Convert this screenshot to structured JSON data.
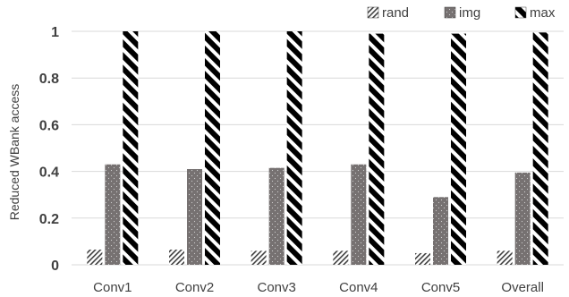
{
  "chart_data": {
    "type": "bar",
    "ylabel": "Reduced WBank access",
    "xlabel": "",
    "categories": [
      "Conv1",
      "Conv2",
      "Conv3",
      "Conv4",
      "Conv5",
      "Overall"
    ],
    "series": [
      {
        "name": "rand",
        "values": [
          0.065,
          0.065,
          0.06,
          0.06,
          0.05,
          0.06
        ],
        "pattern": "light-diagonal",
        "color": "#404040"
      },
      {
        "name": "img",
        "values": [
          0.43,
          0.41,
          0.415,
          0.43,
          0.29,
          0.395
        ],
        "pattern": "dotted-gray",
        "color": "#767171"
      },
      {
        "name": "max",
        "values": [
          1.0,
          1.0,
          1.0,
          0.99,
          0.99,
          0.995
        ],
        "pattern": "wide-diagonal",
        "color": "#000000"
      }
    ],
    "ylim": [
      0,
      1
    ],
    "yticks": [
      0,
      0.2,
      0.4,
      0.6,
      0.8,
      1
    ],
    "ytick_labels": [
      "0",
      "0.2",
      "0.4",
      "0.6",
      "0.8",
      "1"
    ],
    "grid": true,
    "legend_position": "top-right"
  }
}
